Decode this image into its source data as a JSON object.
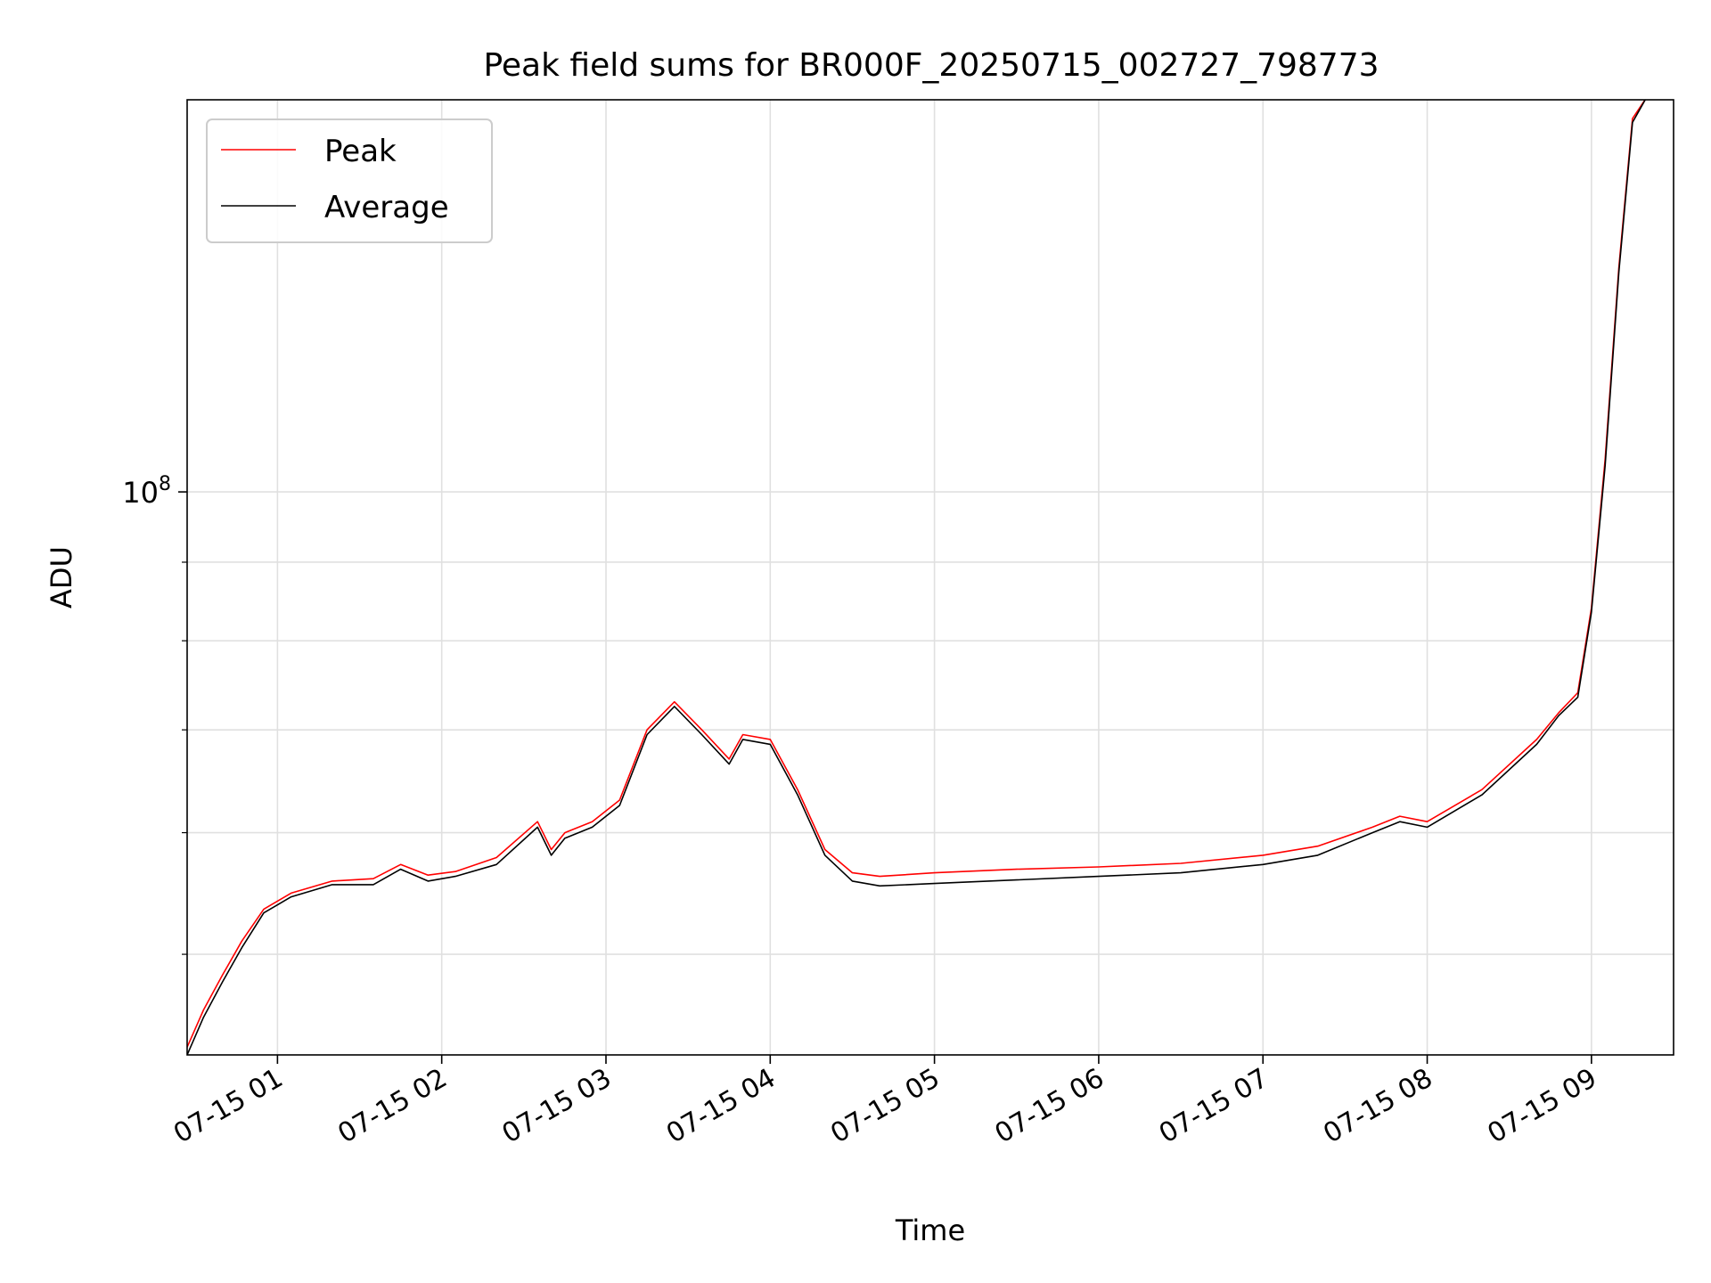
{
  "chart_data": {
    "type": "line",
    "title": "Peak field sums for BR000F_20250715_002727_798773",
    "xlabel": "Time",
    "ylabel": "ADU",
    "y_scale": "log",
    "x_range": [
      "2025-07-15 00:27",
      "2025-07-15 09:30"
    ],
    "ylim": [
      43000000,
      180000000
    ],
    "x_ticks": [
      {
        "time": "01:00",
        "label": "07-15 01"
      },
      {
        "time": "02:00",
        "label": "07-15 02"
      },
      {
        "time": "03:00",
        "label": "07-15 03"
      },
      {
        "time": "04:00",
        "label": "07-15 04"
      },
      {
        "time": "05:00",
        "label": "07-15 05"
      },
      {
        "time": "06:00",
        "label": "07-15 06"
      },
      {
        "time": "07:00",
        "label": "07-15 07"
      },
      {
        "time": "08:00",
        "label": "07-15 08"
      },
      {
        "time": "09:00",
        "label": "07-15 09"
      }
    ],
    "y_ticks": [
      {
        "value": 100000000,
        "base": "10",
        "exponent": "8"
      }
    ],
    "y_minor_ticks": [
      50000000,
      60000000,
      70000000,
      80000000,
      90000000,
      200000000
    ],
    "grid": true,
    "legend_position": "upper-left",
    "colors": {
      "peak": "#ff0000",
      "average": "#000000",
      "grid": "#e0e0e0"
    },
    "series": [
      {
        "name": "Peak",
        "color": "#ff0000",
        "x": [
          "00:27",
          "00:33",
          "00:40",
          "00:47",
          "00:55",
          "01:05",
          "01:20",
          "01:35",
          "01:45",
          "01:55",
          "02:05",
          "02:20",
          "02:35",
          "02:40",
          "02:45",
          "02:55",
          "03:05",
          "03:15",
          "03:25",
          "03:35",
          "03:45",
          "03:50",
          "04:00",
          "04:10",
          "04:20",
          "04:30",
          "04:40",
          "05:00",
          "05:30",
          "06:00",
          "06:30",
          "07:00",
          "07:20",
          "07:40",
          "07:50",
          "08:00",
          "08:20",
          "08:40",
          "08:48",
          "08:55",
          "09:00",
          "09:05",
          "09:10",
          "09:15",
          "09:20"
        ],
        "y": [
          43500000,
          46000000,
          48500000,
          51000000,
          53500000,
          54800000,
          55800000,
          56000000,
          57200000,
          56300000,
          56600000,
          57800000,
          61000000,
          58500000,
          60000000,
          61000000,
          63000000,
          70000000,
          73000000,
          70000000,
          67000000,
          69500000,
          69000000,
          64000000,
          58500000,
          56500000,
          56200000,
          56500000,
          56800000,
          57000000,
          57300000,
          58000000,
          58800000,
          60500000,
          61500000,
          61000000,
          64000000,
          69000000,
          71800000,
          74000000,
          84000000,
          105000000,
          140000000,
          175000000,
          181000000
        ]
      },
      {
        "name": "Average",
        "color": "#000000",
        "x": [
          "00:27",
          "00:33",
          "00:40",
          "00:47",
          "00:55",
          "01:05",
          "01:20",
          "01:35",
          "01:45",
          "01:55",
          "02:05",
          "02:20",
          "02:35",
          "02:40",
          "02:45",
          "02:55",
          "03:05",
          "03:15",
          "03:25",
          "03:35",
          "03:45",
          "03:50",
          "04:00",
          "04:10",
          "04:20",
          "04:30",
          "04:40",
          "05:00",
          "05:30",
          "06:00",
          "06:30",
          "07:00",
          "07:20",
          "07:40",
          "07:50",
          "08:00",
          "08:20",
          "08:40",
          "08:48",
          "08:55",
          "09:00",
          "09:05",
          "09:10",
          "09:15",
          "09:20"
        ],
        "y": [
          43000000,
          45500000,
          48000000,
          50500000,
          53200000,
          54500000,
          55500000,
          55500000,
          56800000,
          55800000,
          56200000,
          57200000,
          60500000,
          58000000,
          59500000,
          60500000,
          62500000,
          69500000,
          72500000,
          69500000,
          66500000,
          69000000,
          68500000,
          63500000,
          58000000,
          55800000,
          55400000,
          55600000,
          55900000,
          56200000,
          56500000,
          57200000,
          58000000,
          60000000,
          61000000,
          60500000,
          63500000,
          68500000,
          71500000,
          73500000,
          83500000,
          104000000,
          139000000,
          174000000,
          181000000
        ]
      }
    ]
  }
}
